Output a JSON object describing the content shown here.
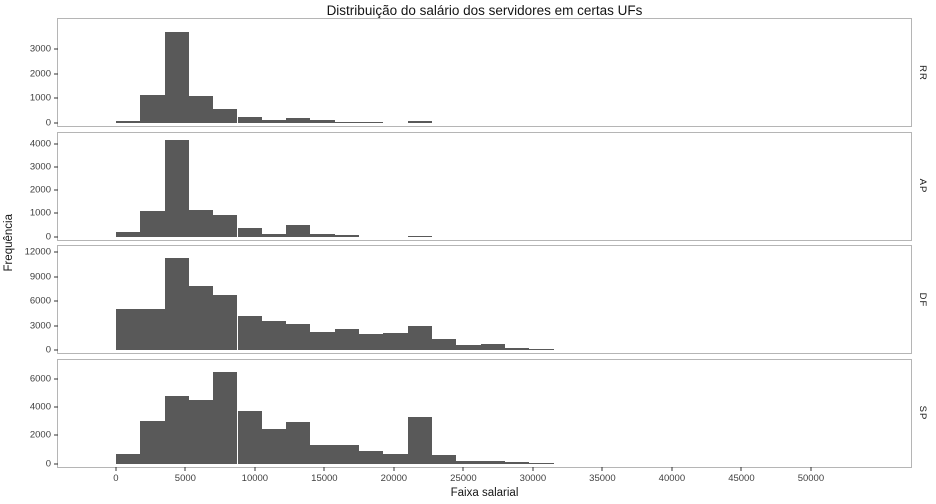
{
  "figure": {
    "title": "Distribuição do salário dos servidores em certas UFs",
    "xlabel": "Faixa salarial",
    "ylabel": "Frequência"
  },
  "chart_data": {
    "type": "bar",
    "subtype": "faceted-histogram",
    "title": "Distribuição do salário dos servidores em certas UFs",
    "xlabel": "Faixa salarial",
    "ylabel": "Frequência",
    "grid": false,
    "legend": false,
    "bar_color": "#595959",
    "panel_border": "#b5b5b5",
    "bin_start": 0,
    "bin_width": 1750,
    "x_ticks": [
      0,
      5000,
      10000,
      15000,
      20000,
      25000,
      30000,
      35000,
      40000,
      45000,
      50000
    ],
    "x_domain": [
      -4163,
      57200
    ],
    "facets": [
      {
        "label": "RR",
        "y_ticks": [
          0,
          1000,
          2000,
          3000
        ],
        "y_max": 4090,
        "values": [
          100,
          1150,
          3700,
          1100,
          550,
          260,
          130,
          210,
          130,
          60,
          50,
          0,
          100,
          0,
          0,
          0,
          0,
          0
        ]
      },
      {
        "label": "AP",
        "y_ticks": [
          0,
          1000,
          2000,
          3000,
          4000
        ],
        "y_max": 4380,
        "values": [
          180,
          1100,
          4200,
          1150,
          950,
          370,
          130,
          500,
          100,
          50,
          0,
          0,
          40,
          0,
          0,
          0,
          0,
          0
        ]
      },
      {
        "label": "DF",
        "y_ticks": [
          0,
          3000,
          6000,
          9000,
          12000
        ],
        "y_max": 12370,
        "values": [
          5000,
          5000,
          11300,
          7800,
          6800,
          4200,
          3500,
          3200,
          2200,
          2600,
          2000,
          2100,
          2900,
          1400,
          600,
          700,
          200,
          100
        ]
      },
      {
        "label": "SP",
        "y_ticks": [
          0,
          2000,
          4000,
          6000
        ],
        "y_max": 7200,
        "values": [
          650,
          3050,
          4800,
          4550,
          6550,
          3750,
          2450,
          2950,
          1300,
          1350,
          900,
          650,
          3350,
          600,
          150,
          150,
          80,
          50
        ]
      }
    ]
  }
}
